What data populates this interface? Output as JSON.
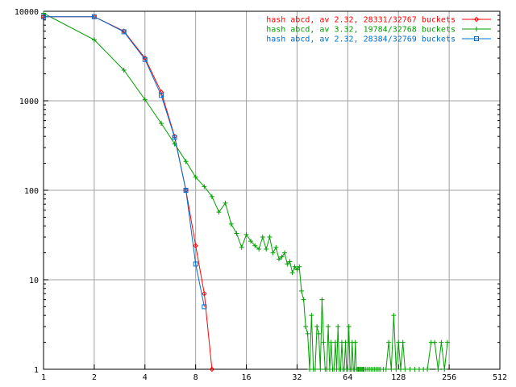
{
  "chart_data": {
    "type": "line",
    "title": "",
    "xlabel": "",
    "ylabel": "",
    "x_scale": "log2",
    "y_scale": "log10",
    "xlim": [
      1,
      512
    ],
    "ylim": [
      1,
      10000
    ],
    "grid": true,
    "legend_position": "top-right",
    "x_ticks": [
      {
        "value": 1,
        "label": "1"
      },
      {
        "value": 2,
        "label": "2"
      },
      {
        "value": 4,
        "label": "4"
      },
      {
        "value": 8,
        "label": "8"
      },
      {
        "value": 16,
        "label": "16"
      },
      {
        "value": 32,
        "label": "32"
      },
      {
        "value": 64,
        "label": "64"
      },
      {
        "value": 128,
        "label": "128"
      },
      {
        "value": 256,
        "label": "256"
      },
      {
        "value": 512,
        "label": "512"
      }
    ],
    "y_ticks": [
      {
        "value": 1,
        "label": "1"
      },
      {
        "value": 10,
        "label": "10"
      },
      {
        "value": 100,
        "label": "100"
      },
      {
        "value": 1000,
        "label": "1000"
      },
      {
        "value": 10000,
        "label": "10000"
      }
    ],
    "series": [
      {
        "name": "hash abcd, av 2.32, 28331/32767 buckets",
        "color": "#ff0000",
        "marker": "diamond",
        "x": [
          1,
          2,
          3,
          4,
          5,
          6,
          7,
          8,
          9,
          10
        ],
        "y": [
          8700,
          8700,
          6000,
          3000,
          1250,
          400,
          100,
          24,
          7,
          1
        ]
      },
      {
        "name": "hash abcd, av 3.32, 19784/32768 buckets",
        "color": "#00a000",
        "marker": "plus",
        "x": [
          1,
          2,
          3,
          4,
          5,
          6,
          7,
          8,
          9,
          10,
          11,
          12,
          13,
          14,
          15,
          16,
          17,
          18,
          19,
          20,
          21,
          22,
          23,
          24,
          25,
          26,
          27,
          28,
          29,
          30,
          31,
          32,
          33,
          34,
          35,
          36,
          37,
          38,
          39,
          40,
          41,
          42,
          43,
          44,
          45,
          46,
          47,
          48,
          49,
          50,
          51,
          52,
          53,
          54,
          55,
          56,
          57,
          58,
          59,
          60,
          61,
          62,
          63,
          64,
          65,
          66,
          67,
          68,
          69,
          70,
          71,
          72,
          73,
          74,
          75,
          76,
          77,
          78,
          79,
          80,
          82,
          84,
          86,
          88,
          90,
          92,
          94,
          96,
          98,
          100,
          104,
          108,
          112,
          116,
          120,
          124,
          128,
          132,
          136,
          140,
          150,
          160,
          170,
          180,
          190,
          200,
          210,
          220,
          230,
          240,
          250
        ],
        "y": [
          9500,
          4800,
          2200,
          1030,
          560,
          330,
          210,
          140,
          110,
          85,
          57,
          72,
          42,
          33,
          23,
          32,
          27,
          24,
          22,
          30,
          22,
          30,
          20,
          23,
          17,
          18,
          20,
          15,
          16,
          12,
          14,
          13,
          14,
          7.5,
          6,
          3,
          2.5,
          1,
          4,
          1,
          1,
          3,
          2.5,
          1,
          6,
          2,
          1,
          1,
          3,
          1,
          2,
          1,
          1,
          2,
          1,
          3,
          1,
          1,
          2,
          1,
          1,
          2,
          1,
          1,
          3,
          1,
          1,
          2,
          1,
          1,
          2,
          1,
          1,
          1,
          1,
          1,
          1,
          1,
          1,
          1,
          1,
          1,
          1,
          1,
          1,
          1,
          1,
          1,
          1,
          1,
          1,
          1,
          2,
          1,
          4,
          1,
          2,
          1,
          2,
          1,
          1,
          1,
          1,
          1,
          1,
          2,
          2,
          1,
          2,
          1,
          2
        ]
      },
      {
        "name": "hash abcd, av 2.32, 28384/32769 buckets",
        "color": "#0070d0",
        "marker": "square",
        "x": [
          1,
          2,
          3,
          4,
          5,
          6,
          7,
          8,
          9
        ],
        "y": [
          8700,
          8700,
          5900,
          2900,
          1150,
          390,
          100,
          15,
          5
        ]
      }
    ]
  }
}
